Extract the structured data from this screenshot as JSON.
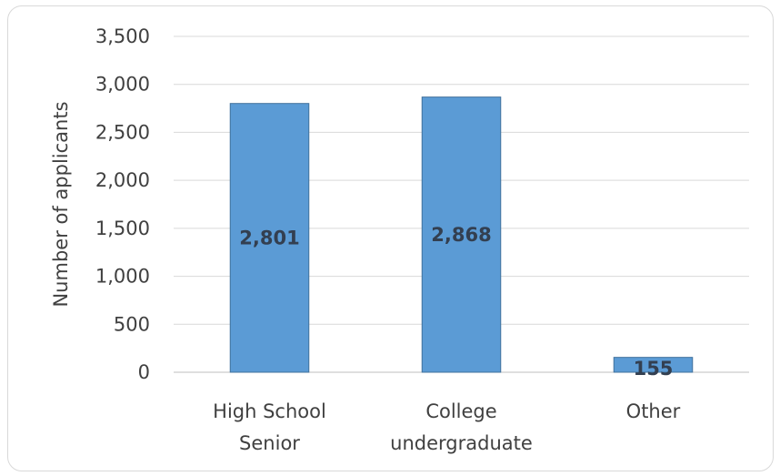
{
  "chart_data": {
    "type": "bar",
    "categories": [
      [
        "High School",
        "Senior"
      ],
      [
        "College",
        "undergraduate"
      ],
      [
        "Other"
      ]
    ],
    "values": [
      2801,
      2868,
      155
    ],
    "data_labels": [
      "2,801",
      "2,868",
      "155"
    ],
    "title": "",
    "xlabel": "",
    "ylabel": "Number of applicants",
    "ylim": [
      0,
      3500
    ],
    "yticks": [
      0,
      500,
      1000,
      1500,
      2000,
      2500,
      3000,
      3500
    ],
    "ytick_labels": [
      "0",
      "500",
      "1,000",
      "1,500",
      "2,000",
      "2,500",
      "3,000",
      "3,500"
    ],
    "grid": true,
    "legend": "none",
    "colors": {
      "bar_fill": "#5b9bd5",
      "bar_edge": "#41719c",
      "text": "#404040",
      "data_label": "#333f50",
      "grid": "#d9d9d9"
    }
  }
}
